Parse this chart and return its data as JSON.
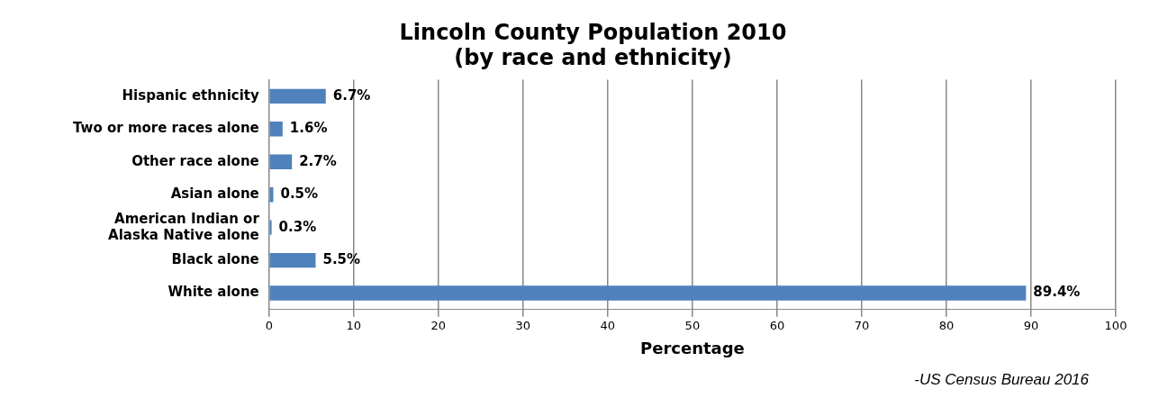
{
  "chart_data": {
    "type": "bar",
    "orientation": "horizontal",
    "title": "Lincoln County Population 2010\n(by race and ethnicity)",
    "xlabel": "Percentage",
    "categories": [
      "Hispanic ethnicity",
      "Two or more races alone",
      "Other race alone",
      "Asian alone",
      "American Indian or Alaska Native alone",
      "Black alone",
      "White alone"
    ],
    "values": [
      6.7,
      1.6,
      2.7,
      0.5,
      0.3,
      5.5,
      89.4
    ],
    "value_labels": [
      "6.7%",
      "1.6%",
      "2.7%",
      "0.5%",
      "0.3%",
      "5.5%",
      "89.4%"
    ],
    "color": "#4f81bd",
    "xlim": [
      0,
      100
    ],
    "xticks": [
      0,
      10,
      20,
      30,
      40,
      50,
      60,
      70,
      80,
      90,
      100
    ],
    "grid": "x",
    "annotations": [
      "-US Census Bureau 2016"
    ]
  }
}
